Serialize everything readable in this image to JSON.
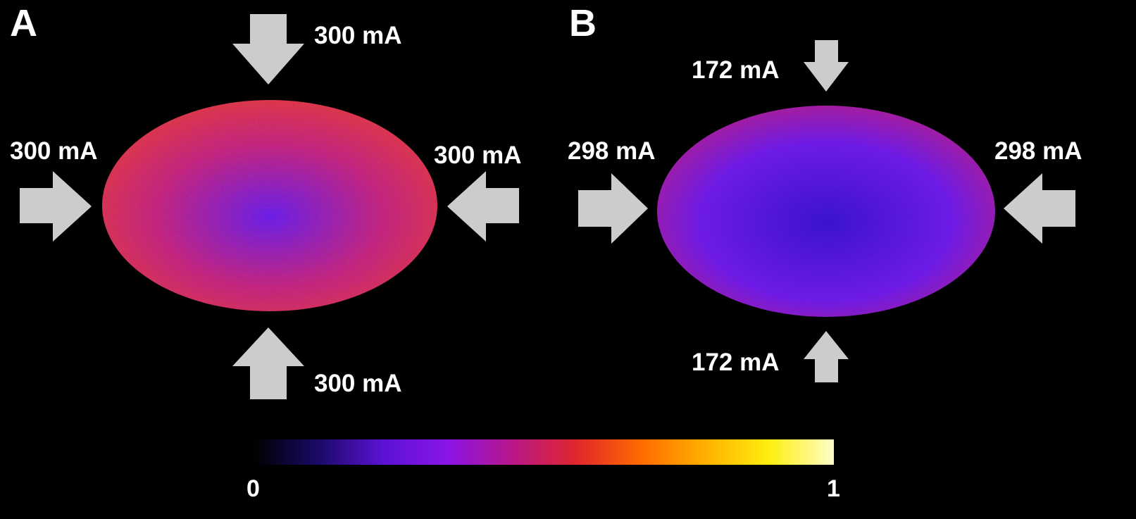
{
  "panels": [
    {
      "letter": "A",
      "labels": {
        "top": "300 mA",
        "bottom": "300 mA",
        "left": "300 mA",
        "right": "300 mA"
      },
      "map": {
        "center": "#6a1ee6",
        "mid": "#c2247e",
        "edge": "#e33b3a"
      }
    },
    {
      "letter": "B",
      "labels": {
        "top": "172 mA",
        "bottom": "172 mA",
        "left": "298 mA",
        "right": "298 mA"
      },
      "map": {
        "center": "#3a12d0",
        "mid": "#6d1ae6",
        "edge": "#b61e86"
      }
    }
  ],
  "colorbar": {
    "min_label": "0",
    "max_label": "1",
    "stops": [
      "#000000",
      "#1a0a66",
      "#5a12d4",
      "#8a14e8",
      "#b8178a",
      "#e0262c",
      "#ff6a00",
      "#ffb000",
      "#ffee10",
      "#fffdc8"
    ]
  },
  "colors": {
    "arrow": "#cccccc",
    "background": "#000000",
    "text": "#ffffff"
  }
}
